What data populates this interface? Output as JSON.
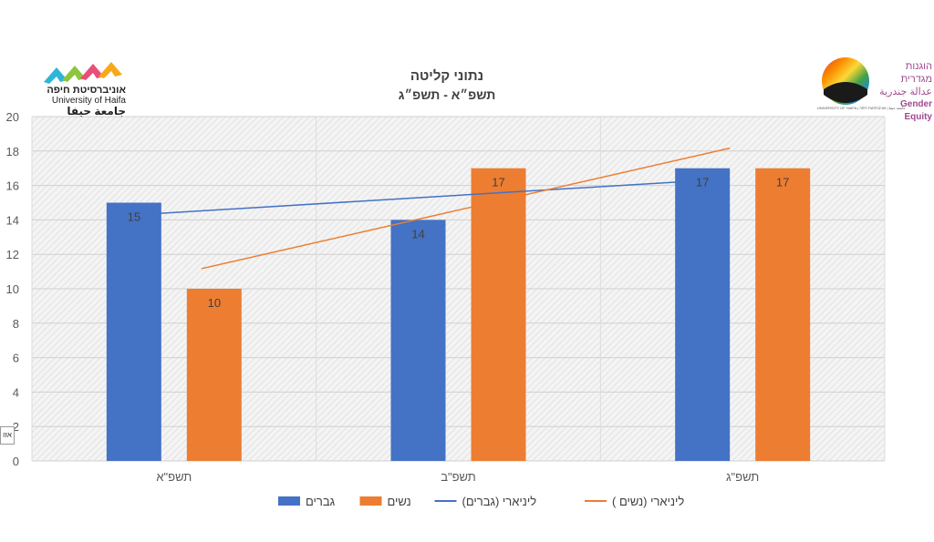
{
  "chart_data": {
    "type": "bar",
    "title": "נתוני קליטה",
    "subtitle": "תשפ״א - תשפ״ג",
    "categories": [
      "תשפ\"א",
      "תשפ\"ב",
      "תשפ\"ג"
    ],
    "series": [
      {
        "name": "גברים",
        "values": [
          15,
          14,
          17
        ],
        "color": "#4472C4"
      },
      {
        "name": "נשים",
        "values": [
          10,
          17,
          17
        ],
        "color": "#ED7D31"
      }
    ],
    "trendlines": [
      {
        "name": "ליניארי (גברים)",
        "of_series": "גברים",
        "color": "#4472C4"
      },
      {
        "name": "ליניארי (נשים )",
        "of_series": "נשים",
        "color": "#ED7D31"
      }
    ],
    "ylim": [
      0,
      20
    ],
    "yticks": [
      0,
      2,
      4,
      6,
      8,
      10,
      12,
      14,
      16,
      18,
      20
    ],
    "data_labels": true,
    "grid": true,
    "legend_position": "bottom",
    "xlabel": "",
    "ylabel": ""
  },
  "logos": {
    "university": {
      "hebrew": "אוניברסיטת חיפה",
      "english": "University of Haifa",
      "arabic": "جامعة حيفا"
    },
    "gender_equity": {
      "hebrew": "הוגנות מגדרית",
      "arabic": "عدالة جندرية",
      "english": "Gender Equity",
      "small_caption": "UNIVERSITY OF HAIFA | جامعة حيفا | אוניברסיטת חיפה"
    }
  },
  "side_tag": "אזו"
}
